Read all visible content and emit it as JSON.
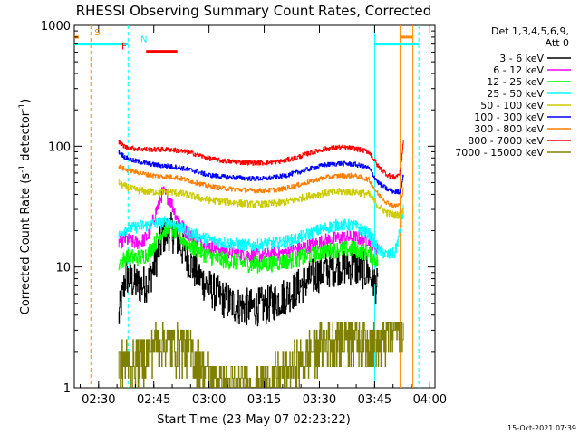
{
  "chart_data": {
    "type": "line",
    "title": "RHESSI Observing Summary Count Rates, Corrected",
    "xlabel": "Start Time (23-May-07 02:23:22)",
    "ylabel_main": "Corrected Count Rate (s",
    "ylabel_sup1": "-1",
    "ylabel_mid": " detector",
    "ylabel_sup2": "-1",
    "ylabel_end": ")",
    "x_unit": "minutes since 02:23:22",
    "xlim": [
      0,
      98
    ],
    "ylim": [
      1,
      1000
    ],
    "y_scale": "log",
    "x_ticks": [
      {
        "v": 6.6,
        "label": "02:30"
      },
      {
        "v": 21.6,
        "label": "02:45"
      },
      {
        "v": 36.6,
        "label": "03:00"
      },
      {
        "v": 51.6,
        "label": "03:15"
      },
      {
        "v": 66.6,
        "label": "03:30"
      },
      {
        "v": 81.6,
        "label": "03:45"
      },
      {
        "v": 96.6,
        "label": "04:00"
      }
    ],
    "y_ticks": [
      {
        "v": 1,
        "label": "1"
      },
      {
        "v": 10,
        "label": "10"
      },
      {
        "v": 100,
        "label": "100"
      },
      {
        "v": 1000,
        "label": "1000"
      }
    ],
    "legend_header": [
      "Det 1,3,4,5,6,9,",
      "Att 0"
    ],
    "series": [
      {
        "name": "3 - 6 keV",
        "color": "#000000",
        "x": [
          12,
          14,
          16,
          18,
          20,
          22,
          24,
          26,
          28,
          30,
          33,
          36,
          40,
          44,
          48,
          52,
          56,
          60,
          64,
          68,
          72,
          76,
          80,
          82.5
        ],
        "y": [
          3.8,
          8.5,
          7.5,
          7,
          7.5,
          11,
          18,
          20,
          17,
          13,
          9,
          7,
          5.5,
          4.8,
          4.6,
          4.8,
          5.5,
          6.5,
          8,
          9.5,
          10.2,
          10,
          9,
          6.5
        ]
      },
      {
        "name": "6 - 12 keV",
        "color": "#ff00ff",
        "x": [
          12,
          14,
          16,
          18,
          20,
          22,
          24,
          26,
          28,
          30,
          33,
          36,
          40,
          44,
          48,
          52,
          56,
          60,
          64,
          68,
          72,
          76,
          80,
          82.5
        ],
        "y": [
          16,
          17,
          16,
          16,
          18,
          28,
          42,
          36,
          25,
          20,
          17,
          15,
          14,
          13,
          12.5,
          12.5,
          13,
          14,
          15,
          16.5,
          17.5,
          17.5,
          17,
          14
        ]
      },
      {
        "name": "12 - 25 keV",
        "color": "#00ff00",
        "x": [
          12,
          14,
          16,
          18,
          20,
          22,
          24,
          26,
          28,
          30,
          33,
          36,
          40,
          44,
          48,
          52,
          56,
          60,
          64,
          68,
          72,
          76,
          80,
          82.5
        ],
        "y": [
          10.5,
          12,
          12,
          12,
          13,
          16,
          20,
          21,
          19,
          16,
          14,
          12.5,
          11.5,
          11,
          10.5,
          10.5,
          11,
          11.5,
          12.5,
          13.5,
          14,
          14,
          13,
          11
        ]
      },
      {
        "name": "25 - 50 keV",
        "color": "#00ffff",
        "x": [
          12,
          14,
          16,
          18,
          20,
          22,
          24,
          26,
          28,
          30,
          33,
          36,
          40,
          44,
          48,
          52,
          56,
          60,
          64,
          68,
          72,
          76,
          80,
          82.5,
          85,
          87,
          88.5,
          89.5
        ],
        "y": [
          18,
          21,
          21,
          22,
          22,
          23,
          23.5,
          23.5,
          22,
          20,
          18.5,
          17,
          16,
          15.5,
          15,
          15.5,
          16,
          17,
          19,
          21,
          22.5,
          22,
          19,
          14,
          12.5,
          13,
          20,
          32
        ]
      },
      {
        "name": "50 - 100 keV",
        "color": "#cccc00",
        "x": [
          12,
          14,
          16,
          18,
          20,
          22,
          24,
          26,
          28,
          30,
          33,
          36,
          40,
          44,
          48,
          52,
          56,
          60,
          64,
          68,
          72,
          76,
          80,
          82.5,
          85,
          87,
          88.5,
          89.5
        ],
        "y": [
          50,
          46,
          44,
          43,
          42,
          42,
          42,
          42,
          41,
          40,
          38,
          36,
          35,
          34,
          33,
          33,
          34,
          36,
          39,
          41,
          42,
          42,
          40,
          32,
          28,
          27,
          27,
          30
        ]
      },
      {
        "name": "100 - 300 keV",
        "color": "#0000ff",
        "x": [
          12,
          14,
          16,
          18,
          20,
          22,
          24,
          26,
          28,
          30,
          33,
          36,
          40,
          44,
          48,
          52,
          56,
          60,
          64,
          68,
          72,
          76,
          80,
          82.5,
          85,
          87,
          88.5,
          89.5
        ],
        "y": [
          90,
          80,
          76,
          74,
          72,
          70,
          69,
          68,
          67,
          65,
          62,
          58,
          56,
          55,
          54,
          54,
          56,
          60,
          65,
          70,
          72,
          71,
          66,
          50,
          44,
          42,
          42,
          60
        ]
      },
      {
        "name": "300 - 800 keV",
        "color": "#ff7f00",
        "x": [
          12,
          14,
          16,
          18,
          20,
          22,
          24,
          26,
          28,
          30,
          33,
          36,
          40,
          44,
          48,
          52,
          56,
          60,
          64,
          68,
          72,
          76,
          80,
          82.5,
          85,
          87,
          88.5,
          89.5
        ],
        "y": [
          68,
          64,
          62,
          60,
          58,
          57,
          56,
          56,
          55,
          53,
          50,
          47,
          45,
          44,
          43,
          43,
          44,
          47,
          51,
          55,
          57,
          57,
          53,
          40,
          34,
          32,
          33,
          48
        ]
      },
      {
        "name": "800 - 7000 keV",
        "color": "#ff0000",
        "x": [
          12,
          14,
          16,
          18,
          20,
          22,
          24,
          26,
          28,
          30,
          33,
          36,
          40,
          44,
          48,
          52,
          56,
          60,
          64,
          68,
          72,
          76,
          80,
          82.5,
          85,
          87,
          88.5,
          89.5
        ],
        "y": [
          108,
          98,
          96,
          95,
          94,
          94,
          94,
          94,
          92,
          90,
          86,
          80,
          76,
          74,
          73,
          73,
          75,
          80,
          88,
          95,
          98,
          96,
          90,
          68,
          58,
          55,
          60,
          120
        ]
      },
      {
        "name": "7000 - 15000 keV",
        "color": "#808000",
        "x": [
          12,
          14,
          16,
          18,
          20,
          22,
          24,
          26,
          28,
          30,
          33,
          36,
          40,
          44,
          48,
          52,
          56,
          60,
          64,
          68,
          72,
          76,
          80,
          82.5,
          85,
          87,
          88.5,
          89.5
        ],
        "y": [
          1.5,
          1.7,
          1.6,
          1.8,
          2.1,
          2.4,
          2.4,
          2.4,
          2.3,
          2.2,
          1.8,
          1.4,
          1.1,
          1.05,
          1.05,
          1.1,
          1.3,
          1.6,
          2.0,
          2.5,
          2.8,
          2.8,
          2.5,
          2.3,
          2.8,
          3.0,
          3.2,
          3.5
        ]
      }
    ],
    "annotations": [
      {
        "label": "S",
        "color": "#ff8c00",
        "x": 4.5,
        "bars": [
          [
            0,
            1.2
          ],
          [
            88.5,
            92
          ]
        ],
        "bar_y": 800
      },
      {
        "label": "N",
        "color": "#00ffff",
        "x": 17,
        "bars": [
          [
            0,
            14.6
          ],
          [
            81.6,
            93.6
          ]
        ],
        "bar_y": 700
      },
      {
        "label": "F",
        "color": "#ff0000",
        "x": 17,
        "bars": [
          [
            19.5,
            28
          ]
        ],
        "bar_y": 610
      }
    ],
    "vertical_lines": [
      {
        "x": 4.5,
        "color": "#ff8c00",
        "style": "dashed"
      },
      {
        "x": 14.6,
        "color": "#00ffff",
        "style": "dashed"
      },
      {
        "x": 81.6,
        "color": "#00ffff",
        "style": "solid"
      },
      {
        "x": 88.5,
        "color": "#ff8c00",
        "style": "solid"
      },
      {
        "x": 93.6,
        "color": "#00ffff",
        "style": "dashed"
      },
      {
        "x": 92,
        "color": "#ff8c00",
        "style": "solid"
      }
    ]
  },
  "footer_timestamp": "15-Oct-2021 07:39"
}
